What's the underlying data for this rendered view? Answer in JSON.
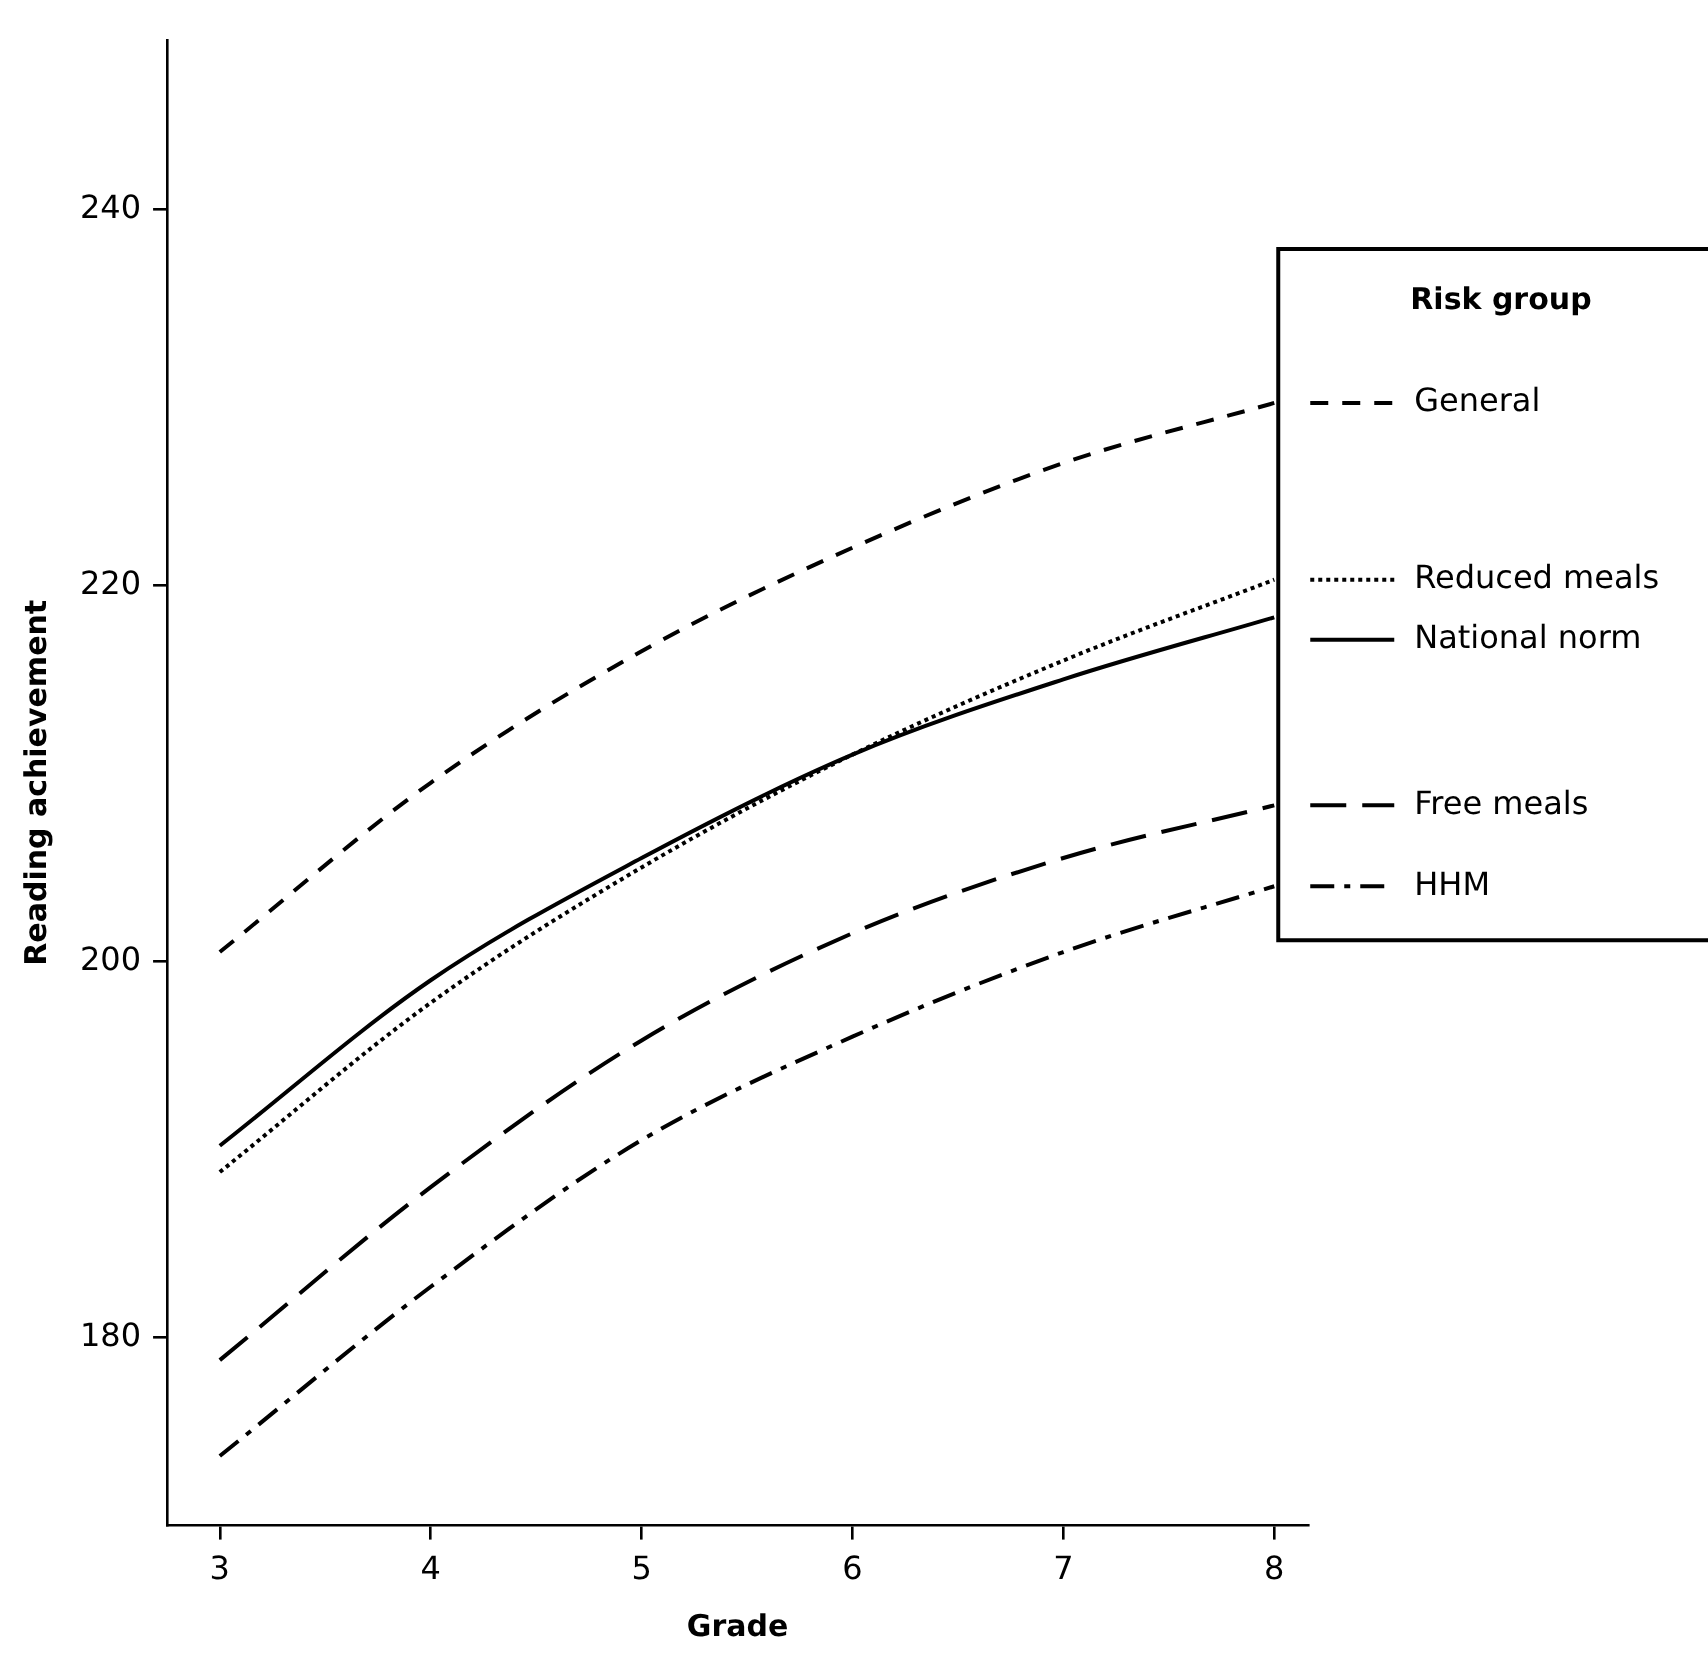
{
  "chart_data": {
    "type": "line",
    "xlabel": "Grade",
    "ylabel": "Reading achievement",
    "legend_title": "Risk group",
    "legend": "top right",
    "grid": false,
    "marker": "none",
    "xlim": [
      2.75,
      8.16
    ],
    "xticks": [
      3,
      4,
      5,
      6,
      7,
      8
    ],
    "ylim": [
      170,
      249
    ],
    "yticks": [
      180,
      200,
      220,
      240
    ],
    "x": [
      3,
      4,
      5,
      6,
      7,
      8
    ],
    "series": [
      {
        "name": "General",
        "color": "#000000",
        "line_style": "dashed",
        "values": [
          200.5,
          209.5,
          216.5,
          222,
          226.5,
          229.7
        ]
      },
      {
        "name": "Reduced meals",
        "color": "#000000",
        "line_style": "dotted",
        "values": [
          188.8,
          197.8,
          205,
          211,
          216,
          220.3
        ]
      },
      {
        "name": "National norm",
        "color": "#000000",
        "line_style": "solid",
        "values": [
          190.2,
          199,
          205.5,
          211,
          215,
          218.3
        ]
      },
      {
        "name": "Free meals",
        "color": "#000000",
        "line_style": "long dashed",
        "values": [
          178.8,
          188,
          195.8,
          201.5,
          205.5,
          208.3
        ]
      },
      {
        "name": "HHM",
        "color": "#000000",
        "line_style": "dash-dot",
        "values": [
          173.7,
          182.7,
          190.5,
          196,
          200.5,
          204
        ]
      }
    ]
  }
}
